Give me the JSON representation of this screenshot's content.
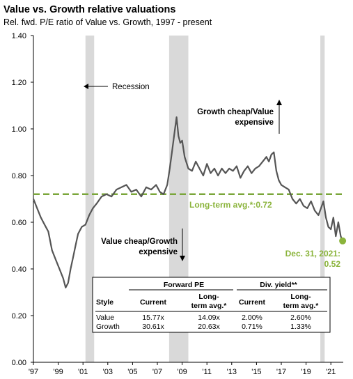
{
  "title": "Value vs. Growth relative valuations",
  "subtitle": "Rel. fwd. P/E ratio of Value vs. Growth, 1997 - present",
  "colors": {
    "line": "#555555",
    "avg_line": "#7aa63a",
    "recession": "#d9d9d9",
    "endpoint": "#8bb43c"
  },
  "annotations": {
    "recession": "Recession",
    "growth_cheap_1": "Growth cheap/Value",
    "growth_cheap_2": "expensive",
    "value_cheap_1": "Value cheap/Growth",
    "value_cheap_2": "expensive",
    "lt_avg": "Long-term avg.*:0.72",
    "latest_1": "Dec. 31, 2021:",
    "latest_2": "0.52"
  },
  "table": {
    "group_forward_pe": "Forward PE",
    "group_div_yield": "Div. yield**",
    "col_style": "Style",
    "col_current": "Current",
    "col_lt_1": "Long-",
    "col_lt_2": "term avg.*",
    "rows": [
      {
        "style": "Value",
        "pe_current": "15.77x",
        "pe_lt": "14.09x",
        "dy_current": "2.00%",
        "dy_lt": "2.60%"
      },
      {
        "style": "Growth",
        "pe_current": "30.61x",
        "pe_lt": "20.63x",
        "dy_current": "0.71%",
        "dy_lt": "1.33%"
      }
    ]
  },
  "chart_data": {
    "type": "line",
    "title": "Value vs. Growth relative valuations",
    "subtitle": "Rel. fwd. P/E ratio of Value vs. Growth, 1997 - present",
    "xlim": [
      1997,
      2022
    ],
    "ylim": [
      0,
      1.4
    ],
    "x_ticks": [
      "'97",
      "'99",
      "'01",
      "'03",
      "'05",
      "'07",
      "'09",
      "'11",
      "'13",
      "'15",
      "'17",
      "'19",
      "'21"
    ],
    "y_ticks": [
      "0.00",
      "0.20",
      "0.40",
      "0.60",
      "0.80",
      "1.00",
      "1.20",
      "1.40"
    ],
    "grid": false,
    "long_term_average": 0.72,
    "latest": {
      "label": "Dec. 31, 2021",
      "value": 0.52
    },
    "recessions": [
      [
        2001.2,
        2001.9
      ],
      [
        2007.95,
        2009.5
      ],
      [
        2020.15,
        2020.5
      ]
    ],
    "series": [
      {
        "x": [
          1997.0,
          1997.3,
          1997.6,
          1997.9,
          1998.2,
          1998.5,
          1998.8,
          1999.1,
          1999.4,
          1999.6,
          1999.8,
          2000.0,
          2000.2,
          2000.4,
          2000.6,
          2000.9,
          2001.2,
          2001.5,
          2001.8,
          2002.1,
          2002.5,
          2002.9,
          2003.3,
          2003.7,
          2004.1,
          2004.5,
          2004.9,
          2005.3,
          2005.7,
          2006.1,
          2006.5,
          2006.9,
          2007.2,
          2007.5,
          2007.8,
          2008.0,
          2008.2,
          2008.4,
          2008.55,
          2008.7,
          2008.85,
          2009.0,
          2009.2,
          2009.5,
          2009.8,
          2010.1,
          2010.4,
          2010.7,
          2011.0,
          2011.3,
          2011.6,
          2011.9,
          2012.2,
          2012.5,
          2012.8,
          2013.1,
          2013.4,
          2013.7,
          2014.0,
          2014.3,
          2014.6,
          2014.9,
          2015.2,
          2015.5,
          2015.8,
          2016.0,
          2016.2,
          2016.4,
          2016.6,
          2016.8,
          2017.0,
          2017.3,
          2017.6,
          2017.9,
          2018.2,
          2018.5,
          2018.8,
          2019.1,
          2019.4,
          2019.7,
          2020.0,
          2020.2,
          2020.4,
          2020.6,
          2020.8,
          2021.0,
          2021.2,
          2021.4,
          2021.6,
          2021.8,
          2021.95
        ],
        "y": [
          0.7,
          0.66,
          0.62,
          0.59,
          0.56,
          0.48,
          0.44,
          0.4,
          0.36,
          0.32,
          0.34,
          0.4,
          0.45,
          0.5,
          0.55,
          0.58,
          0.59,
          0.63,
          0.66,
          0.68,
          0.71,
          0.72,
          0.71,
          0.74,
          0.75,
          0.76,
          0.73,
          0.74,
          0.71,
          0.75,
          0.74,
          0.76,
          0.73,
          0.72,
          0.76,
          0.83,
          0.91,
          0.99,
          1.05,
          0.97,
          0.94,
          0.95,
          0.88,
          0.83,
          0.82,
          0.86,
          0.83,
          0.8,
          0.85,
          0.81,
          0.83,
          0.8,
          0.83,
          0.81,
          0.83,
          0.82,
          0.84,
          0.79,
          0.82,
          0.84,
          0.81,
          0.83,
          0.84,
          0.86,
          0.88,
          0.86,
          0.89,
          0.9,
          0.82,
          0.78,
          0.76,
          0.75,
          0.74,
          0.7,
          0.68,
          0.7,
          0.67,
          0.66,
          0.69,
          0.65,
          0.63,
          0.66,
          0.69,
          0.62,
          0.58,
          0.57,
          0.62,
          0.54,
          0.6,
          0.54,
          0.52
        ]
      }
    ]
  }
}
